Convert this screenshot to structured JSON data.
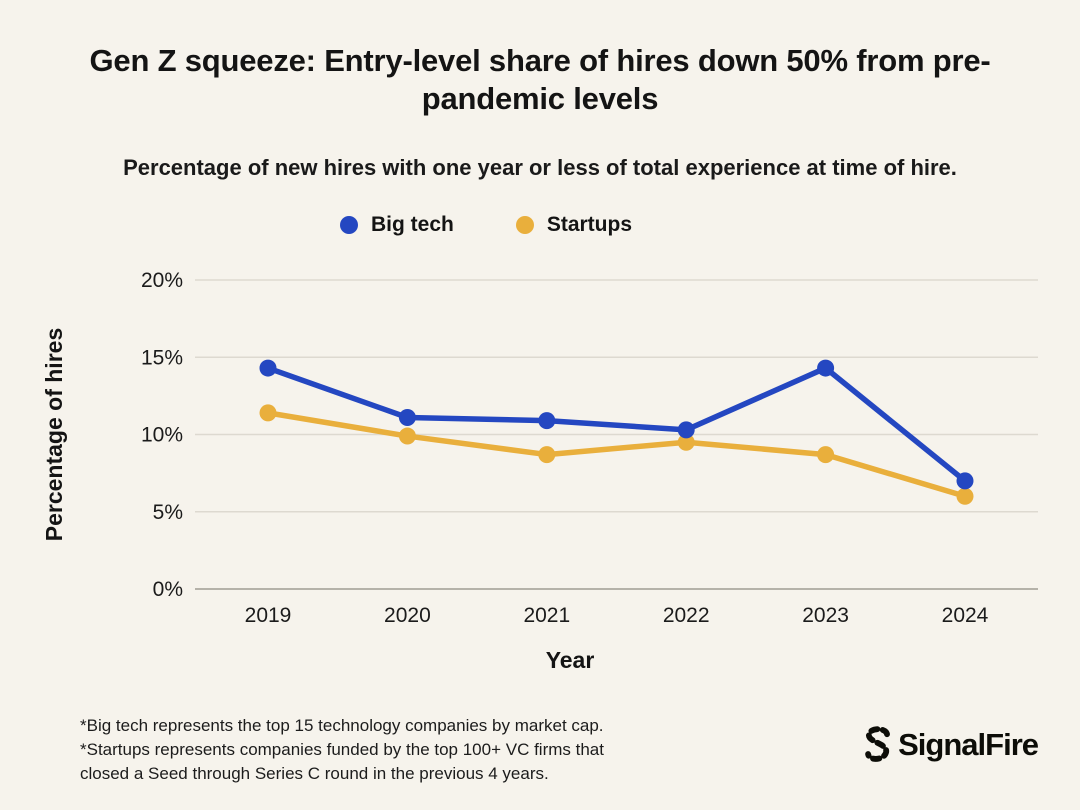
{
  "title": "Gen Z squeeze: Entry-level share of hires down 50% from pre-pandemic levels",
  "subtitle": "Percentage of new hires with one year or less of total experience at time of hire.",
  "colors": {
    "background": "#f6f3ec",
    "text": "#141414",
    "grid": "#ddd9d0",
    "zero_line": "#b5b2a9",
    "big_tech": "#2447c1",
    "startups": "#e9af3c"
  },
  "chart_data": {
    "type": "line",
    "x": [
      "2019",
      "2020",
      "2021",
      "2022",
      "2023",
      "2024"
    ],
    "series": [
      {
        "name": "Big tech",
        "color": "#2447c1",
        "values": [
          14.3,
          11.1,
          10.9,
          10.3,
          14.3,
          7.0
        ]
      },
      {
        "name": "Startups",
        "color": "#e9af3c",
        "values": [
          11.4,
          9.9,
          8.7,
          9.5,
          8.7,
          6.0
        ]
      }
    ],
    "xlabel": "Year",
    "ylabel": "Percentage of hires",
    "ylim": [
      0,
      20
    ],
    "yticks": [
      0,
      5,
      10,
      15,
      20
    ],
    "ytick_suffix": "%",
    "grid": true,
    "legend_position": "top"
  },
  "footnote": {
    "lines": [
      "*Big tech represents the top 15 technology companies by market cap.",
      "*Startups represents companies funded by the top 100+ VC firms that",
      "closed a Seed through Series C round in the previous 4 years."
    ]
  },
  "logo": {
    "text": "SignalFire"
  }
}
